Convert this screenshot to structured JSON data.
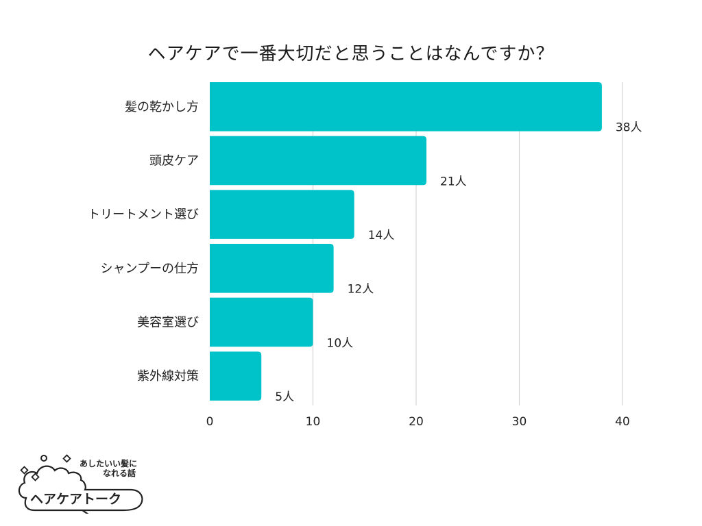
{
  "chart_data": {
    "type": "bar",
    "orientation": "horizontal",
    "title": "ヘアケアで一番大切だと思うことはなんですか？",
    "categories": [
      "髪の乾かし方",
      "頭皮ケア",
      "トリートメント選び",
      "シャンプーの仕方",
      "美容室選び",
      "紫外線対策"
    ],
    "values": [
      38,
      21,
      14,
      12,
      10,
      5
    ],
    "value_labels": [
      "38人",
      "21人",
      "14人",
      "12人",
      "10人",
      "5人"
    ],
    "x_ticks": [
      "0",
      "10",
      "20",
      "30",
      "40"
    ],
    "xlim": [
      0,
      40
    ],
    "grid": true,
    "legend": "none",
    "bar_color": "#00c2c9"
  },
  "logo": {
    "tagline_line1": "あしたいい髪に",
    "tagline_line2": "なれる話",
    "brand": "ヘアケアトーク"
  }
}
